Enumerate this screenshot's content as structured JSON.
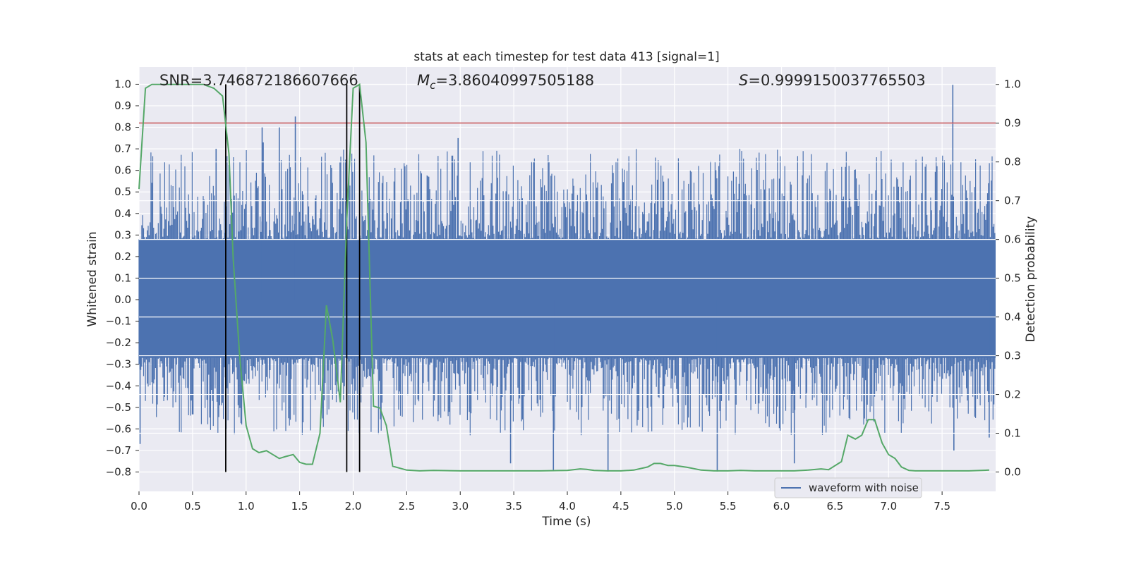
{
  "chart_data": {
    "type": "line",
    "title": "stats at each timestep for test data 413 [signal=1]",
    "xlabel": "Time (s)",
    "ylabel": "Whitened strain",
    "y2label": "Detection probability",
    "xlim": [
      0,
      8
    ],
    "ylim": [
      -0.89,
      1.08
    ],
    "y2lim": [
      -0.05,
      1.045
    ],
    "grid": true,
    "legend_position": "lower-right",
    "x_ticks": [
      "0.0",
      "0.5",
      "1.0",
      "1.5",
      "2.0",
      "2.5",
      "3.0",
      "3.5",
      "4.0",
      "4.5",
      "5.0",
      "5.5",
      "6.0",
      "6.5",
      "7.0",
      "7.5"
    ],
    "y_ticks": [
      "1.0",
      "0.9",
      "0.8",
      "0.7",
      "0.6",
      "0.5",
      "0.4",
      "0.3",
      "0.2",
      "0.1",
      "0.0",
      "−0.1",
      "−0.2",
      "−0.3",
      "−0.4",
      "−0.5",
      "−0.6",
      "−0.7",
      "−0.8"
    ],
    "y2_ticks": [
      "1.0",
      "0.9",
      "0.8",
      "0.7",
      "0.6",
      "0.5",
      "0.4",
      "0.3",
      "0.2",
      "0.1",
      "0.0"
    ],
    "annotations": {
      "snr_prefix": "SNR=",
      "snr_value": "3.746872186607666",
      "mc_symbol": "M",
      "mc_sub": "c",
      "mc_value": "=3.86040997505188",
      "s_symbol": "S",
      "s_value": "=0.9999150037765503"
    },
    "threshold": {
      "value": 0.82,
      "axis": "left",
      "color": "#c44e52"
    },
    "vertical_lines": [
      {
        "x": 0.81,
        "ymin": -0.8,
        "ymax": 1.0
      },
      {
        "x": 1.94,
        "ymin": -0.8,
        "ymax": 1.0
      },
      {
        "x": 2.06,
        "ymin": -0.8,
        "ymax": 1.0
      }
    ],
    "series": [
      {
        "name": "waveform with noise",
        "color": "#4c72b0",
        "axis": "left",
        "kind": "noise",
        "core_band": [
          -0.27,
          0.28
        ],
        "spikes": [
          {
            "x": 1.46,
            "y": 0.85
          },
          {
            "x": 0.72,
            "y": 0.7
          },
          {
            "x": 1.16,
            "y": 0.73
          },
          {
            "x": 1.31,
            "y": 0.8
          },
          {
            "x": 1.15,
            "y": 0.8
          },
          {
            "x": 2.98,
            "y": 0.75
          },
          {
            "x": 7.6,
            "y": 1.0
          },
          {
            "x": 7.61,
            "y": -0.7
          },
          {
            "x": 4.38,
            "y": -0.8
          },
          {
            "x": 5.4,
            "y": -0.8
          },
          {
            "x": 3.87,
            "y": -0.79
          },
          {
            "x": 3.47,
            "y": -0.76
          },
          {
            "x": 6.12,
            "y": -0.76
          },
          {
            "x": 0.01,
            "y": -0.67
          },
          {
            "x": 7.94,
            "y": -0.64
          }
        ]
      },
      {
        "name": "detection probability",
        "color": "#55a868",
        "axis": "right",
        "x": [
          0.0,
          0.06,
          0.12,
          0.2,
          0.3,
          0.4,
          0.5,
          0.6,
          0.7,
          0.78,
          0.84,
          0.88,
          0.94,
          1.0,
          1.06,
          1.12,
          1.19,
          1.25,
          1.31,
          1.37,
          1.44,
          1.5,
          1.56,
          1.62,
          1.69,
          1.75,
          1.81,
          1.88,
          1.94,
          2.0,
          2.06,
          2.12,
          2.19,
          2.25,
          2.31,
          2.37,
          2.5,
          2.62,
          2.75,
          3.0,
          3.25,
          3.5,
          3.75,
          4.0,
          4.12,
          4.18,
          4.25,
          4.37,
          4.5,
          4.62,
          4.75,
          4.81,
          4.87,
          4.94,
          5.0,
          5.12,
          5.25,
          5.37,
          5.5,
          5.62,
          5.75,
          5.87,
          6.0,
          6.12,
          6.25,
          6.37,
          6.44,
          6.56,
          6.62,
          6.69,
          6.75,
          6.81,
          6.87,
          6.94,
          7.0,
          7.06,
          7.12,
          7.19,
          7.25,
          7.37,
          7.5,
          7.62,
          7.75,
          7.87,
          7.94
        ],
        "y": [
          0.73,
          0.99,
          1.0,
          1.0,
          1.0,
          1.0,
          1.0,
          1.0,
          0.99,
          0.97,
          0.82,
          0.55,
          0.3,
          0.12,
          0.06,
          0.05,
          0.055,
          0.045,
          0.035,
          0.04,
          0.045,
          0.025,
          0.02,
          0.02,
          0.1,
          0.43,
          0.34,
          0.18,
          0.65,
          0.99,
          1.0,
          0.85,
          0.17,
          0.165,
          0.12,
          0.015,
          0.005,
          0.003,
          0.004,
          0.003,
          0.003,
          0.003,
          0.003,
          0.004,
          0.008,
          0.007,
          0.004,
          0.003,
          0.003,
          0.005,
          0.013,
          0.022,
          0.022,
          0.017,
          0.017,
          0.012,
          0.005,
          0.003,
          0.003,
          0.004,
          0.003,
          0.003,
          0.003,
          0.003,
          0.005,
          0.008,
          0.006,
          0.027,
          0.095,
          0.085,
          0.095,
          0.135,
          0.135,
          0.075,
          0.045,
          0.035,
          0.013,
          0.004,
          0.003,
          0.003,
          0.003,
          0.003,
          0.003,
          0.004,
          0.005
        ]
      }
    ]
  }
}
